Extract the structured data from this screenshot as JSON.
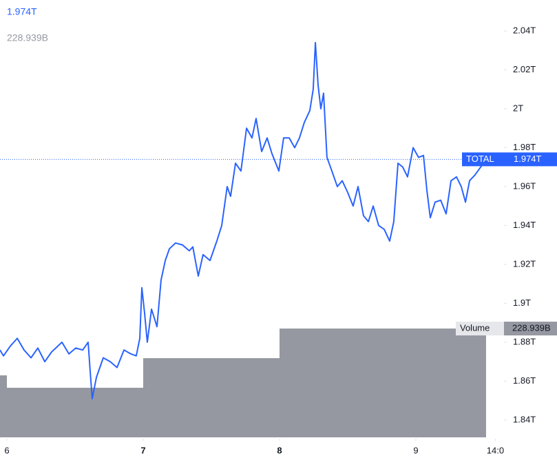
{
  "chart_data": {
    "type": "line",
    "xlim": [
      5.9495,
      9.6465
    ],
    "ylim": [
      1.8304,
      2.0559
    ],
    "y2lim": [
      0,
      250
    ],
    "xticks": [
      6,
      7,
      8,
      9,
      {
        "value": 9.583,
        "label": "14:0"
      }
    ],
    "yticks": [
      {
        "value": 1.84,
        "label": "1.84T"
      },
      {
        "value": 1.86,
        "label": "1.86T"
      },
      {
        "value": 1.88,
        "label": "1.88T"
      },
      {
        "value": 1.9,
        "label": "1.9T"
      },
      {
        "value": 1.92,
        "label": "1.92T"
      },
      {
        "value": 1.94,
        "label": "1.94T"
      },
      {
        "value": 1.96,
        "label": "1.96T"
      },
      {
        "value": 1.98,
        "label": "1.98T"
      },
      {
        "value": 2,
        "label": "2T"
      },
      {
        "value": 2.02,
        "label": "2.02T"
      },
      {
        "value": 2.04,
        "label": "2.04T"
      }
    ],
    "series": [
      {
        "name": "TOTAL",
        "color": "#2962ff",
        "current": {
          "value": 1.974,
          "label": "1.974T"
        },
        "x": [
          5.949,
          5.975,
          6.025,
          6.076,
          6.126,
          6.177,
          6.227,
          6.278,
          6.328,
          6.404,
          6.455,
          6.505,
          6.556,
          6.596,
          6.611,
          6.626,
          6.657,
          6.707,
          6.758,
          6.808,
          6.859,
          6.909,
          6.949,
          6.975,
          6.99,
          7.01,
          7.03,
          7.061,
          7.101,
          7.131,
          7.162,
          7.192,
          7.237,
          7.288,
          7.338,
          7.364,
          7.404,
          7.439,
          7.49,
          7.54,
          7.576,
          7.616,
          7.641,
          7.677,
          7.717,
          7.758,
          7.798,
          7.828,
          7.869,
          7.909,
          7.944,
          7.995,
          8.03,
          8.071,
          8.111,
          8.146,
          8.182,
          8.222,
          8.247,
          8.263,
          8.283,
          8.303,
          8.323,
          8.348,
          8.384,
          8.424,
          8.46,
          8.5,
          8.54,
          8.576,
          8.616,
          8.652,
          8.687,
          8.727,
          8.768,
          8.808,
          8.838,
          8.869,
          8.904,
          8.939,
          8.98,
          9.02,
          9.056,
          9.081,
          9.106,
          9.141,
          9.182,
          9.222,
          9.258,
          9.298,
          9.333,
          9.364,
          9.394,
          9.434,
          9.475,
          9.515
        ],
        "values": [
          1.876,
          1.873,
          1.878,
          1.882,
          1.876,
          1.872,
          1.877,
          1.87,
          1.875,
          1.88,
          1.874,
          1.877,
          1.876,
          1.88,
          1.865,
          1.851,
          1.862,
          1.872,
          1.87,
          1.867,
          1.876,
          1.874,
          1.873,
          1.882,
          1.908,
          1.895,
          1.88,
          1.897,
          1.888,
          1.912,
          1.922,
          1.928,
          1.931,
          1.93,
          1.927,
          1.929,
          1.914,
          1.925,
          1.922,
          1.932,
          1.94,
          1.96,
          1.955,
          1.972,
          1.968,
          1.99,
          1.985,
          1.995,
          1.978,
          1.985,
          1.977,
          1.968,
          1.985,
          1.985,
          1.98,
          1.985,
          1.993,
          1.999,
          2.01,
          2.034,
          2.012,
          2.0,
          2.008,
          1.975,
          1.968,
          1.96,
          1.963,
          1.957,
          1.95,
          1.96,
          1.945,
          1.942,
          1.95,
          1.94,
          1.938,
          1.932,
          1.942,
          1.972,
          1.97,
          1.965,
          1.98,
          1.975,
          1.976,
          1.958,
          1.944,
          1.952,
          1.953,
          1.946,
          1.963,
          1.965,
          1.96,
          1.952,
          1.963,
          1.966,
          1.97,
          1.974
        ]
      },
      {
        "name": "Volume",
        "color": "#9598a1",
        "axis": "y2",
        "kind": "step-bar",
        "current": {
          "value": 228.939,
          "label": "228.939B"
        },
        "x": [
          5,
          6,
          7,
          8
        ],
        "values": [
          130.4,
          104.3,
          166.6,
          228.939
        ]
      }
    ]
  }
}
